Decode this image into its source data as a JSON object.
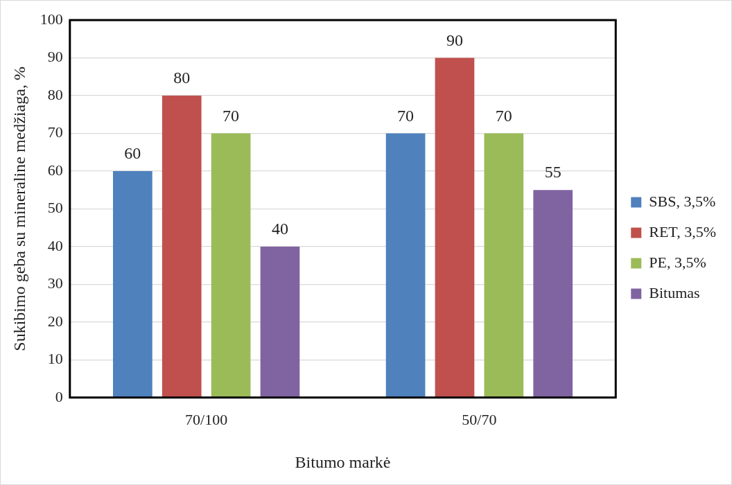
{
  "chart_data": {
    "type": "bar",
    "xlabel": "Bitumo markė",
    "ylabel": "Sukibimo geba su mineraline medžiaga, %",
    "categories": [
      "70/100",
      "50/70"
    ],
    "series": [
      {
        "name": "SBS, 3,5%",
        "color": "#4f81bd",
        "values": [
          60,
          70
        ]
      },
      {
        "name": "RET, 3,5%",
        "color": "#c0504d",
        "values": [
          80,
          90
        ]
      },
      {
        "name": "PE, 3,5%",
        "color": "#9bbb59",
        "values": [
          70,
          70
        ]
      },
      {
        "name": "Bitumas",
        "color": "#8064a2",
        "values": [
          40,
          55
        ]
      }
    ],
    "ylim": [
      0,
      100
    ],
    "yticks": [
      0,
      10,
      20,
      30,
      40,
      50,
      60,
      70,
      80,
      90,
      100
    ],
    "grid": "y",
    "legend": "right",
    "data_labels": true
  }
}
